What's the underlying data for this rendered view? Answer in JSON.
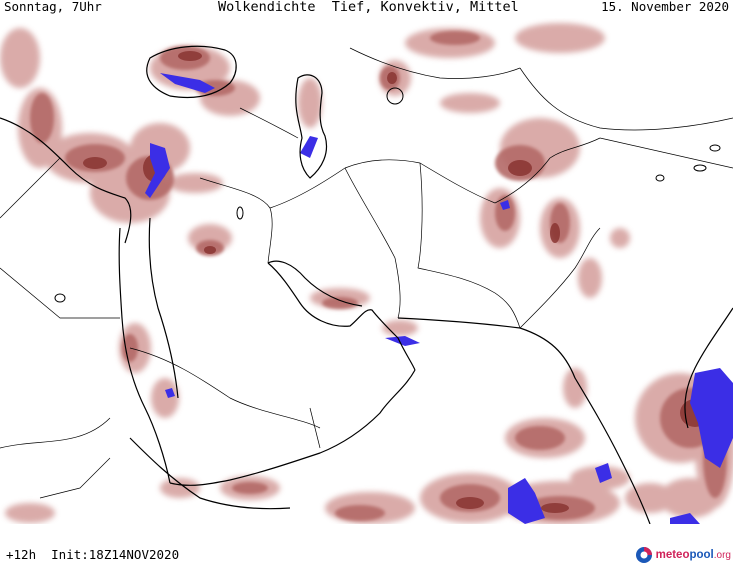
{
  "header": {
    "left": "Sonntag, 7Uhr",
    "center": "Wolkendichte  Tief, Konvektiv, Mittel",
    "right": "15. November 2020"
  },
  "footer": {
    "left": "+12h  Init:18Z14NOV2020"
  },
  "logo": {
    "part1": "meteo",
    "part2": "pool",
    "part3": ".org",
    "icon": "meteopool-logo-icon"
  },
  "colors": {
    "cloud_light": "#d6a3a0",
    "cloud_mid": "#b46a67",
    "cloud_dark": "#8a3532",
    "convective": "#3b2ee6",
    "borders": "#000000"
  }
}
